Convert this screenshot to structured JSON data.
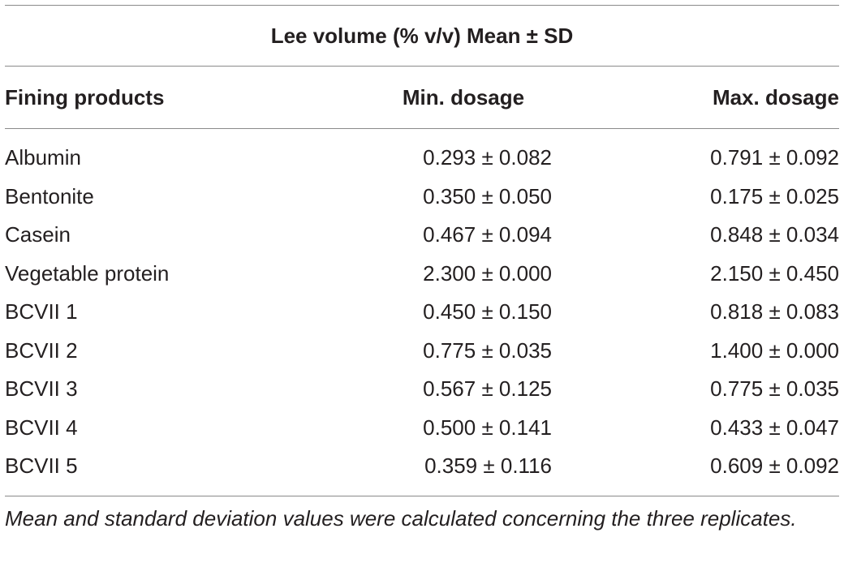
{
  "table": {
    "group_header": "Lee volume (% v/v) Mean ± SD",
    "columns": [
      "Fining products",
      "Min. dosage",
      "Max. dosage"
    ],
    "rows": [
      {
        "product": "Albumin",
        "min": "0.293 ± 0.082",
        "max": "0.791 ± 0.092"
      },
      {
        "product": "Bentonite",
        "min": "0.350 ± 0.050",
        "max": "0.175 ± 0.025"
      },
      {
        "product": "Casein",
        "min": "0.467 ± 0.094",
        "max": "0.848 ± 0.034"
      },
      {
        "product": "Vegetable protein",
        "min": "2.300 ± 0.000",
        "max": "2.150 ± 0.450"
      },
      {
        "product": "BCVII 1",
        "min": "0.450 ± 0.150",
        "max": "0.818 ± 0.083"
      },
      {
        "product": "BCVII 2",
        "min": "0.775 ± 0.035",
        "max": "1.400 ± 0.000"
      },
      {
        "product": "BCVII 3",
        "min": "0.567 ± 0.125",
        "max": "0.775 ± 0.035"
      },
      {
        "product": "BCVII 4",
        "min": "0.500 ± 0.141",
        "max": "0.433 ± 0.047"
      },
      {
        "product": "BCVII 5",
        "min": "0.359 ± 0.116",
        "max": "0.609 ± 0.092"
      }
    ],
    "footnote": "Mean and standard deviation values were calculated concerning the three replicates."
  }
}
